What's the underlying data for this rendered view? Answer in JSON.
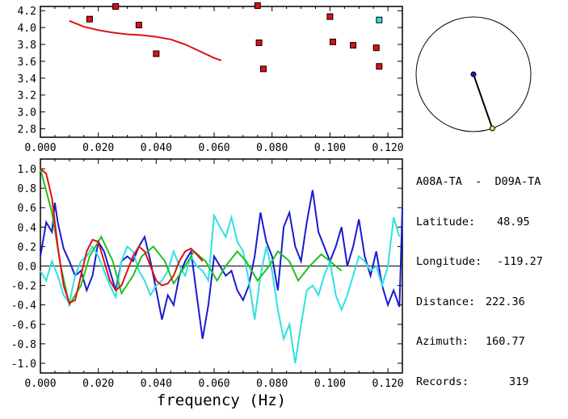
{
  "info": {
    "station_pair": "A08A-TA  -  D09A-TA",
    "rows": [
      {
        "label": "Latitude:",
        "value": "48.95"
      },
      {
        "label": "Longitude:",
        "value": "-119.27"
      },
      {
        "label": "Distance:",
        "value": "222.36"
      },
      {
        "label": "Azimuth:",
        "value": "160.77"
      },
      {
        "label": "Records:",
        "value": "319"
      }
    ]
  },
  "chart_data": [
    {
      "type": "scatter",
      "xlim": [
        0.0,
        0.125
      ],
      "ylim": [
        2.7,
        4.25
      ],
      "xticks": [
        "0.000",
        "0.020",
        "0.040",
        "0.060",
        "0.080",
        "0.100",
        "0.120"
      ],
      "yticks": [
        "2.8",
        "3.0",
        "3.2",
        "3.4",
        "3.6",
        "3.8",
        "4.0",
        "4.2"
      ],
      "series": [
        {
          "kind": "curve",
          "color": "#e01010",
          "x": [
            0.01,
            0.015,
            0.02,
            0.025,
            0.03,
            0.035,
            0.04,
            0.045,
            0.05,
            0.055,
            0.06,
            0.0625
          ],
          "y": [
            4.08,
            4.01,
            3.97,
            3.94,
            3.92,
            3.91,
            3.89,
            3.86,
            3.8,
            3.72,
            3.64,
            3.61
          ]
        },
        {
          "kind": "points",
          "color": "#e01010",
          "marker": "square",
          "x": [
            0.017,
            0.026,
            0.034,
            0.04,
            0.075,
            0.0755,
            0.077,
            0.1,
            0.101,
            0.108,
            0.116,
            0.117
          ],
          "y": [
            4.1,
            4.25,
            4.03,
            3.69,
            4.26,
            3.82,
            3.51,
            4.13,
            3.83,
            3.79,
            3.76,
            3.54
          ]
        },
        {
          "kind": "points",
          "color": "#30e0e0",
          "marker": "square",
          "x": [
            0.117
          ],
          "y": [
            4.09
          ]
        }
      ]
    },
    {
      "type": "line",
      "xlim": [
        0.0,
        0.125
      ],
      "ylim": [
        -1.1,
        1.1
      ],
      "xticks": [
        "0.000",
        "0.020",
        "0.040",
        "0.060",
        "0.080",
        "0.100",
        "0.120"
      ],
      "yticks": [
        "1.0",
        "0.8",
        "0.6",
        "0.4",
        "0.2",
        "0.0",
        "-0.2",
        "-0.4",
        "-0.6",
        "-0.8",
        "-1.0"
      ],
      "xlabel": "frequency (Hz)",
      "series": [
        {
          "color": "#1a1ad0",
          "x": [
            0,
            0.002,
            0.004,
            0.005,
            0.006,
            0.008,
            0.01,
            0.012,
            0.014,
            0.016,
            0.018,
            0.02,
            0.022,
            0.024,
            0.026,
            0.028,
            0.03,
            0.032,
            0.034,
            0.036,
            0.038,
            0.04,
            0.042,
            0.044,
            0.046,
            0.048,
            0.05,
            0.052,
            0.054,
            0.056,
            0.058,
            0.06,
            0.062,
            0.064,
            0.066,
            0.068,
            0.07,
            0.072,
            0.074,
            0.076,
            0.078,
            0.08,
            0.082,
            0.084,
            0.086,
            0.088,
            0.09,
            0.092,
            0.094,
            0.096,
            0.098,
            0.1,
            0.102,
            0.104,
            0.106,
            0.108,
            0.11,
            0.112,
            0.114,
            0.116,
            0.118,
            0.12,
            0.122,
            0.124,
            0.125
          ],
          "y": [
            0.1,
            0.45,
            0.35,
            0.65,
            0.45,
            0.18,
            0.05,
            -0.1,
            -0.05,
            -0.25,
            -0.1,
            0.25,
            0.15,
            -0.05,
            -0.25,
            0.05,
            0.1,
            0.05,
            0.2,
            0.3,
            0.05,
            -0.25,
            -0.55,
            -0.3,
            -0.4,
            -0.1,
            0.05,
            0.15,
            -0.3,
            -0.75,
            -0.4,
            0.1,
            0.0,
            -0.1,
            -0.05,
            -0.25,
            -0.35,
            -0.2,
            0.1,
            0.55,
            0.25,
            0.1,
            -0.25,
            0.4,
            0.55,
            0.2,
            0.05,
            0.45,
            0.78,
            0.35,
            0.2,
            0.05,
            0.2,
            0.4,
            0.0,
            0.2,
            0.48,
            0.1,
            -0.1,
            0.15,
            -0.2,
            -0.4,
            -0.25,
            -0.42,
            0.6
          ]
        },
        {
          "color": "#30e0e0",
          "x": [
            0,
            0.002,
            0.004,
            0.006,
            0.008,
            0.01,
            0.012,
            0.014,
            0.016,
            0.018,
            0.02,
            0.022,
            0.024,
            0.026,
            0.028,
            0.03,
            0.032,
            0.034,
            0.036,
            0.038,
            0.04,
            0.042,
            0.044,
            0.046,
            0.048,
            0.05,
            0.052,
            0.054,
            0.056,
            0.058,
            0.06,
            0.062,
            0.064,
            0.066,
            0.068,
            0.07,
            0.072,
            0.074,
            0.076,
            0.078,
            0.08,
            0.082,
            0.084,
            0.086,
            0.088,
            0.09,
            0.092,
            0.094,
            0.096,
            0.098,
            0.1,
            0.102,
            0.104,
            0.106,
            0.108,
            0.11,
            0.112,
            0.114,
            0.116,
            0.118,
            0.12,
            0.122,
            0.124
          ],
          "y": [
            -0.05,
            -0.15,
            0.05,
            -0.1,
            -0.3,
            -0.38,
            -0.1,
            0.05,
            0.1,
            0.2,
            0.1,
            -0.05,
            -0.2,
            -0.32,
            0.05,
            0.2,
            0.15,
            -0.05,
            -0.15,
            -0.3,
            -0.2,
            -0.15,
            -0.05,
            0.15,
            0.0,
            -0.1,
            0.1,
            0.0,
            -0.05,
            -0.15,
            0.52,
            0.4,
            0.3,
            0.5,
            0.25,
            0.15,
            -0.15,
            -0.55,
            -0.1,
            0.2,
            -0.05,
            -0.45,
            -0.75,
            -0.6,
            -1.0,
            -0.6,
            -0.25,
            -0.2,
            -0.3,
            -0.1,
            0.05,
            -0.3,
            -0.45,
            -0.3,
            -0.1,
            0.1,
            0.05,
            -0.05,
            0.0,
            -0.2,
            0.0,
            0.5,
            0.3
          ]
        },
        {
          "color": "#20c020",
          "x": [
            0,
            0.004,
            0.007,
            0.01,
            0.014,
            0.017,
            0.021,
            0.025,
            0.028,
            0.032,
            0.035,
            0.039,
            0.043,
            0.046,
            0.05,
            0.053,
            0.057,
            0.061,
            0.064,
            0.068,
            0.071,
            0.075,
            0.079,
            0.082,
            0.086,
            0.089,
            0.093,
            0.097,
            0.1,
            0.104
          ],
          "y": [
            1.0,
            0.55,
            0.0,
            -0.4,
            -0.2,
            0.1,
            0.3,
            0.05,
            -0.28,
            -0.1,
            0.1,
            0.2,
            0.05,
            -0.18,
            0.0,
            0.15,
            0.05,
            -0.15,
            0.0,
            0.15,
            0.05,
            -0.15,
            0.0,
            0.15,
            0.05,
            -0.15,
            0.0,
            0.12,
            0.05,
            -0.05
          ]
        },
        {
          "color": "#e01010",
          "x": [
            0,
            0.002,
            0.004,
            0.006,
            0.008,
            0.01,
            0.012,
            0.014,
            0.016,
            0.018,
            0.02,
            0.022,
            0.024,
            0.026,
            0.028,
            0.03,
            0.032,
            0.034,
            0.036,
            0.038,
            0.04,
            0.042,
            0.044,
            0.046,
            0.048,
            0.05,
            0.052,
            0.054,
            0.056
          ],
          "y": [
            1.0,
            0.95,
            0.7,
            0.2,
            -0.2,
            -0.38,
            -0.35,
            -0.1,
            0.15,
            0.27,
            0.25,
            0.05,
            -0.15,
            -0.25,
            -0.2,
            -0.05,
            0.1,
            0.2,
            0.15,
            0.0,
            -0.15,
            -0.2,
            -0.18,
            -0.1,
            0.05,
            0.15,
            0.18,
            0.12,
            0.05
          ]
        }
      ]
    }
  ],
  "map": {
    "line_color": "#000000",
    "center_color": "#1a1ad0",
    "end_color": "#e0e060"
  }
}
